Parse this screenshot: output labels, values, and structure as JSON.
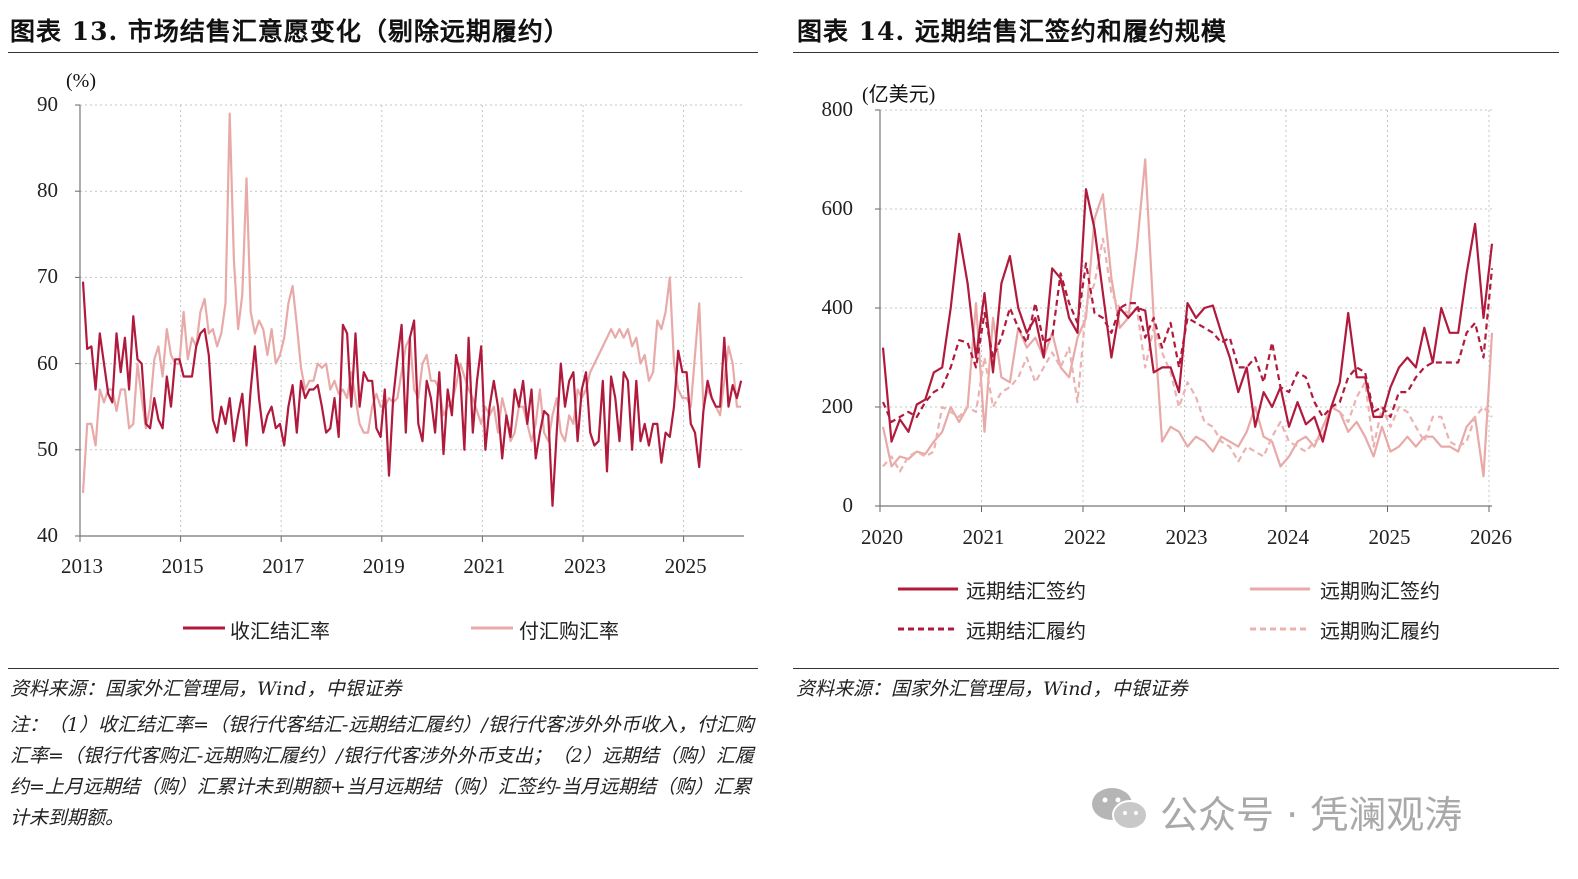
{
  "left": {
    "title": "图表 13. 市场结售汇意愿变化（剔除远期履约）",
    "source": "资料来源：国家外汇管理局，Wind，中银证券",
    "note": "注：（1）收汇结汇率=（银行代客结汇-远期结汇履约）/银行代客涉外外币收入，付汇购汇率=（银行代客购汇-远期购汇履约）/银行代客涉外外币支出；（2）远期结（购）汇履约=上月远期结（购）汇累计未到期额+当月远期结（购）汇签约-当月远期结（购）汇累计未到期额。"
  },
  "right": {
    "title": "图表 14. 远期结售汇签约和履约规模",
    "source": "资料来源：国家外汇管理局，Wind，中银证券"
  },
  "watermark": "公众号 · 凭澜观涛",
  "chart_data": [
    {
      "type": "line",
      "ylabel": "(%)",
      "ylim": [
        40,
        90
      ],
      "yticks": [
        "90",
        "80",
        "70",
        "60",
        "50",
        "40"
      ],
      "xticks": [
        "2013",
        "2015",
        "2017",
        "2019",
        "2021",
        "2023",
        "2025"
      ],
      "x_start": "2013-01",
      "frequency": "monthly",
      "grid": true,
      "legend": "bottom",
      "series": [
        {
          "name": "收汇结汇率",
          "color": "#b01a3c",
          "dash": false,
          "values": [
            69.5,
            61.7,
            62,
            57,
            63.5,
            60,
            56.5,
            55.5,
            63.5,
            59,
            63,
            57,
            65.5,
            60.5,
            60,
            53,
            52.5,
            56,
            53.5,
            52.5,
            58.5,
            55,
            60.5,
            60.5,
            58.5,
            58.5,
            58.5,
            62,
            63.5,
            64,
            61,
            53.5,
            52,
            55,
            53,
            56,
            51,
            54,
            56.5,
            50.5,
            57,
            62,
            56,
            52,
            54,
            55,
            52.5,
            53,
            50.5,
            55,
            57.5,
            52,
            58,
            56,
            57,
            57,
            57.5,
            55,
            52,
            52.5,
            56,
            51.5,
            64.5,
            63.5,
            55,
            63.5,
            55,
            59,
            58,
            58,
            52.5,
            51.5,
            57,
            47,
            56,
            60.5,
            64.5,
            52,
            63,
            65,
            53,
            51,
            58,
            56,
            52,
            59,
            49.5,
            57,
            54,
            61,
            58.5,
            50,
            63,
            52,
            58,
            62,
            50,
            55,
            58,
            55,
            49,
            54,
            51.5,
            57,
            55,
            58,
            53,
            57,
            49,
            52,
            54.5,
            54,
            43.5,
            52,
            60,
            55,
            58,
            59,
            51,
            57,
            59,
            52,
            50.5,
            51,
            58,
            47.5,
            58.5,
            56,
            51,
            59,
            58,
            50,
            58,
            51,
            53,
            50.5,
            53,
            53,
            48.5,
            52,
            51.5,
            55,
            61.5,
            59,
            59,
            53,
            52,
            48,
            54.5,
            58,
            56,
            55,
            55,
            63,
            55,
            57.5,
            56,
            58
          ]
        },
        {
          "name": "付汇购汇率",
          "color": "#e8aaa8",
          "dash": false,
          "values": [
            45,
            53,
            53,
            50.5,
            57,
            55.5,
            57,
            57,
            54.5,
            57,
            57,
            52.5,
            53,
            60,
            56,
            52.5,
            55,
            60.5,
            62,
            58.5,
            64,
            61,
            60,
            60,
            66,
            60.5,
            63,
            62,
            66,
            67.5,
            63.5,
            64,
            62,
            63.5,
            67,
            89,
            72,
            64,
            68,
            81.5,
            66,
            63.5,
            65,
            64,
            61,
            64,
            60,
            61,
            63,
            67,
            69,
            64.5,
            59.5,
            57,
            58,
            58,
            60,
            59.5,
            60,
            57,
            58,
            56.5,
            57,
            56,
            59,
            56,
            53,
            52,
            52,
            55,
            56.5,
            55,
            55,
            56,
            55.5,
            56,
            59,
            62,
            63,
            57,
            56,
            60,
            61,
            58,
            58,
            57,
            54,
            55,
            55.5,
            57.5,
            60,
            58.5,
            57,
            56,
            54.5,
            53,
            55,
            54,
            55,
            52,
            56,
            54,
            51,
            52,
            55,
            55,
            53,
            51,
            53,
            57,
            52,
            51,
            54,
            56,
            52,
            51,
            54,
            53,
            57,
            56,
            57,
            59,
            60,
            61,
            62,
            63,
            64,
            63,
            64,
            63,
            64,
            62,
            63,
            60,
            61,
            58,
            59,
            65,
            64,
            66,
            70,
            60,
            57,
            56,
            56,
            55,
            61,
            67,
            55,
            57,
            56,
            55,
            54,
            58,
            62,
            60,
            55,
            55
          ]
        }
      ]
    },
    {
      "type": "line",
      "ylabel": "(亿美元)",
      "ylim": [
        0,
        800
      ],
      "yticks": [
        "800",
        "600",
        "400",
        "200",
        "0"
      ],
      "xticks": [
        "2020",
        "2021",
        "2022",
        "2023",
        "2024",
        "2025",
        "2026"
      ],
      "x_start": "2020-01",
      "frequency": "monthly",
      "grid": true,
      "legend": "bottom",
      "series": [
        {
          "name": "远期结汇签约",
          "color": "#b01a3c",
          "dash": false,
          "values": [
            320,
            130,
            175,
            150,
            205,
            215,
            270,
            280,
            400,
            550,
            450,
            300,
            430,
            270,
            450,
            505,
            400,
            350,
            380,
            300,
            480,
            460,
            380,
            350,
            640,
            560,
            430,
            300,
            400,
            380,
            400,
            395,
            270,
            280,
            280,
            230,
            410,
            380,
            400,
            405,
            350,
            300,
            230,
            280,
            160,
            230,
            200,
            240,
            160,
            210,
            165,
            180,
            130,
            200,
            250,
            390,
            260,
            260,
            180,
            180,
            240,
            280,
            300,
            280,
            360,
            290,
            400,
            350,
            350,
            470,
            570,
            380,
            530
          ]
        },
        {
          "name": "远期购汇签约",
          "color": "#e8aaa8",
          "dash": false,
          "values": [
            160,
            80,
            100,
            95,
            110,
            105,
            130,
            150,
            200,
            170,
            200,
            410,
            150,
            380,
            260,
            250,
            360,
            320,
            340,
            300,
            350,
            280,
            260,
            340,
            380,
            580,
            630,
            460,
            360,
            380,
            520,
            700,
            380,
            130,
            160,
            150,
            120,
            140,
            130,
            110,
            140,
            130,
            120,
            150,
            200,
            140,
            130,
            80,
            100,
            130,
            140,
            120,
            160,
            200,
            190,
            150,
            170,
            140,
            100,
            160,
            110,
            120,
            140,
            120,
            140,
            140,
            120,
            120,
            110,
            160,
            180,
            60,
            350
          ]
        },
        {
          "name": "远期结汇履约",
          "color": "#b01a3c",
          "dash": true,
          "values": [
            210,
            170,
            180,
            190,
            180,
            210,
            230,
            240,
            280,
            335,
            330,
            280,
            390,
            300,
            340,
            400,
            360,
            330,
            410,
            330,
            340,
            470,
            410,
            370,
            490,
            390,
            380,
            350,
            400,
            410,
            410,
            340,
            380,
            320,
            370,
            280,
            380,
            370,
            360,
            350,
            330,
            340,
            280,
            280,
            300,
            250,
            330,
            240,
            230,
            270,
            260,
            210,
            180,
            200,
            210,
            260,
            280,
            270,
            190,
            200,
            180,
            230,
            230,
            260,
            280,
            290,
            290,
            290,
            290,
            350,
            370,
            300,
            480
          ]
        },
        {
          "name": "远期购汇履约",
          "color": "#eab3b2",
          "dash": true,
          "values": [
            80,
            100,
            70,
            100,
            110,
            100,
            110,
            200,
            190,
            180,
            200,
            190,
            300,
            200,
            230,
            240,
            260,
            300,
            250,
            280,
            310,
            280,
            320,
            210,
            400,
            450,
            540,
            430,
            400,
            390,
            400,
            280,
            360,
            310,
            270,
            200,
            250,
            220,
            170,
            160,
            130,
            120,
            90,
            120,
            110,
            100,
            140,
            170,
            130,
            120,
            110,
            130,
            140,
            200,
            190,
            170,
            220,
            250,
            120,
            200,
            160,
            200,
            190,
            160,
            130,
            180,
            180,
            130,
            120,
            130,
            180,
            200,
            180
          ]
        }
      ]
    }
  ]
}
